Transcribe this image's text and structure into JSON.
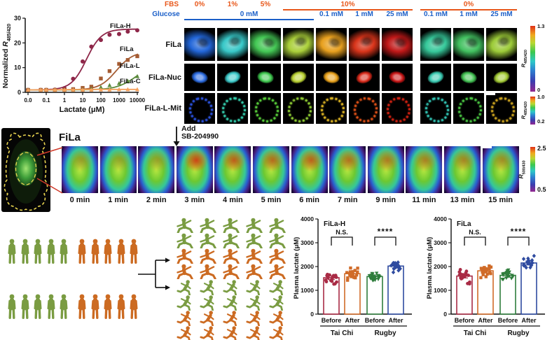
{
  "figure_texts": {
    "imaging": {
      "fbs_label": "FBS",
      "glucose_label": "Glucose",
      "fbs_color": "#E8571A",
      "glucose_color": "#1B5FC8",
      "columns": 10,
      "fbs_groups": [
        {
          "label": "0%",
          "start": 0,
          "end": 0,
          "underline": false
        },
        {
          "label": "1%",
          "start": 1,
          "end": 1,
          "underline": false
        },
        {
          "label": "5%",
          "start": 2,
          "end": 2,
          "underline": false
        },
        {
          "label": "10%",
          "start": 3,
          "end": 6,
          "underline": true
        },
        {
          "label": "0%",
          "start": 7,
          "end": 9,
          "underline": true
        }
      ],
      "glucose_groups": [
        {
          "label": "0 mM",
          "start": 0,
          "end": 3,
          "underline": true
        },
        {
          "label": "0.1 mM",
          "start": 4,
          "end": 4,
          "underline": false
        },
        {
          "label": "1 mM",
          "start": 5,
          "end": 5,
          "underline": false
        },
        {
          "label": "25 mM",
          "start": 6,
          "end": 6,
          "underline": false
        },
        {
          "label": "0.1 mM",
          "start": 7,
          "end": 7,
          "underline": false
        },
        {
          "label": "1 mM",
          "start": 8,
          "end": 8,
          "underline": false
        },
        {
          "label": "25 mM",
          "start": 9,
          "end": 9,
          "underline": false
        }
      ],
      "rows": [
        {
          "label": "FiLa",
          "type": "cell",
          "colors": [
            "#2266D8",
            "#38C8C8",
            "#44C855",
            "#AACF3A",
            "#E8A01E",
            "#D8341A",
            "#C01818",
            "#36C89A",
            "#42C060",
            "#9CCB38"
          ]
        },
        {
          "label": "FiLa-Nuc",
          "type": "nucleus",
          "colors": [
            "#2A6AE0",
            "#3AC8C8",
            "#3EC84E",
            "#B8D030",
            "#E8A018",
            "#D82818",
            "#C81414",
            "#38C8B0",
            "#40C050",
            "#A0C832"
          ]
        },
        {
          "label": "FiLa-L-Mit",
          "type": "mito",
          "colors": [
            "#2A50D8",
            "#32C8A8",
            "#55C838",
            "#8CC832",
            "#D8B022",
            "#D84E16",
            "#CC2010",
            "#30C0B0",
            "#48C040",
            "#C8A01E"
          ]
        }
      ],
      "colorbar1": {
        "max": "1.3",
        "min": "0",
        "r": "R",
        "sub": "485/420"
      },
      "colorbar2": {
        "max": "1.0",
        "min": "0.2",
        "r": "R",
        "sub": "485/420"
      }
    },
    "timecourse": {
      "title": "FiLa",
      "annotation_line1": "Add",
      "annotation_line2": "SB-204990",
      "times": [
        "0 min",
        "1 min",
        "2 min",
        "3 min",
        "4 min",
        "5 min",
        "6 min",
        "7 min",
        "9 min",
        "11 min",
        "13 min",
        "15 min"
      ],
      "hot": [
        0.3,
        0.25,
        0.28,
        0.85,
        0.7,
        0.62,
        0.68,
        0.58,
        0.52,
        0.48,
        0.45,
        0.4
      ],
      "colorbar": {
        "max": "2.5",
        "min": "0.5",
        "r": "R",
        "sub": "500/430"
      }
    },
    "cohort": {
      "green": "#7A9C42",
      "orange": "#CC6B22",
      "standing_rows": 2,
      "standing_green_per_row": 5,
      "standing_orange_per_row": 5,
      "activity_groups": [
        {
          "name": "taichi",
          "cols": 5,
          "green_rows": 2,
          "orange_rows": 2
        },
        {
          "name": "running",
          "cols": 5,
          "green_rows": 2,
          "orange_rows": 2
        }
      ]
    }
  },
  "chart_data": [
    {
      "id": "dose_response",
      "type": "scatter",
      "xlabel": "Lactate (μM)",
      "ylabel_prefix": "Normalized ",
      "ylabel_r": "R",
      "ylabel_sub": "485/420",
      "xscale": "log-with-zero",
      "xticks": [
        "0.0",
        "0.1",
        "1",
        "10",
        "100",
        "1000",
        "10000"
      ],
      "ylim": [
        0,
        30
      ],
      "yticks": [
        0,
        10,
        20,
        30
      ],
      "x": [
        0,
        0.05,
        0.1,
        0.3,
        1,
        3,
        10,
        30,
        100,
        300,
        1000,
        3000,
        10000
      ],
      "series": [
        {
          "name": "FiLa-H",
          "marker": "circle",
          "color": "#8E2749",
          "y": [
            1,
            1,
            1,
            1.1,
            1.7,
            5.5,
            12.5,
            18.5,
            21.2,
            23.3,
            23.6,
            24.6,
            25.1
          ],
          "fit": {
            "top": 25.6,
            "bottom": 1,
            "ec50": 16,
            "hill": 1.05
          }
        },
        {
          "name": "FiLa",
          "marker": "square",
          "color": "#A55C33",
          "y": [
            1,
            1,
            1,
            1,
            1.1,
            1.3,
            1.8,
            2.3,
            5.6,
            8.6,
            11.5,
            13.1,
            14.6
          ],
          "fit": {
            "top": 16.5,
            "bottom": 1,
            "ec50": 700,
            "hill": 0.95
          }
        },
        {
          "name": "FiLa-L",
          "marker": "triangle",
          "color": "#5B8A3B",
          "y": [
            1,
            1,
            1,
            1,
            1,
            1,
            1.2,
            1.5,
            2.1,
            2.9,
            3.7,
            4.6,
            6.5
          ],
          "fit": {
            "top": 12,
            "bottom": 1,
            "ec50": 9000,
            "hill": 0.8
          }
        },
        {
          "name": "FiLa-C",
          "marker": "triangle",
          "color": "#F5A15D",
          "y": [
            1,
            1,
            1,
            1,
            1,
            1,
            1,
            1,
            1.1,
            1.1,
            1.2,
            1.2,
            1.2
          ],
          "fit": {
            "top": 1.2,
            "bottom": 1,
            "ec50": 1,
            "hill": 1
          }
        }
      ]
    },
    {
      "id": "fila_h_bar",
      "type": "bar",
      "title": "FiLa-H",
      "ylabel": "Plasma lactate (μM)",
      "ylim": [
        0,
        4000
      ],
      "yticks": [
        0,
        1000,
        2000,
        3000,
        4000
      ],
      "categories": [
        "Before",
        "After",
        "Before",
        "After"
      ],
      "group_labels": [
        "Tai Chi",
        "Rugby"
      ],
      "values": [
        1530,
        1700,
        1580,
        2020
      ],
      "errors": [
        80,
        85,
        70,
        75
      ],
      "colors": [
        "#A92B45",
        "#D06B28",
        "#2F7D3C",
        "#2F4BA0"
      ],
      "markers": [
        "circle",
        "square",
        "triangle-down",
        "diamond"
      ],
      "scatter_spread": [
        420,
        400,
        300,
        360
      ],
      "n_points": [
        20,
        20,
        20,
        20
      ],
      "significance": [
        {
          "pair": [
            0,
            1
          ],
          "label": "N.S."
        },
        {
          "pair": [
            2,
            3
          ],
          "label": "****"
        }
      ]
    },
    {
      "id": "fila_bar",
      "type": "bar",
      "title": "FiLa",
      "ylabel": "Plasma lactate (μM)",
      "ylim": [
        0,
        4000
      ],
      "yticks": [
        0,
        1000,
        2000,
        3000,
        4000
      ],
      "categories": [
        "Before",
        "After",
        "Before",
        "After"
      ],
      "group_labels": [
        "Tai Chi",
        "Rugby"
      ],
      "values": [
        1600,
        1820,
        1630,
        2150
      ],
      "errors": [
        80,
        90,
        70,
        80
      ],
      "colors": [
        "#A92B45",
        "#D06B28",
        "#2F7D3C",
        "#2F4BA0"
      ],
      "markers": [
        "circle",
        "square",
        "triangle-down",
        "diamond"
      ],
      "scatter_spread": [
        430,
        420,
        300,
        390
      ],
      "n_points": [
        20,
        20,
        20,
        20
      ],
      "significance": [
        {
          "pair": [
            0,
            1
          ],
          "label": "N.S."
        },
        {
          "pair": [
            2,
            3
          ],
          "label": "****"
        }
      ]
    }
  ]
}
